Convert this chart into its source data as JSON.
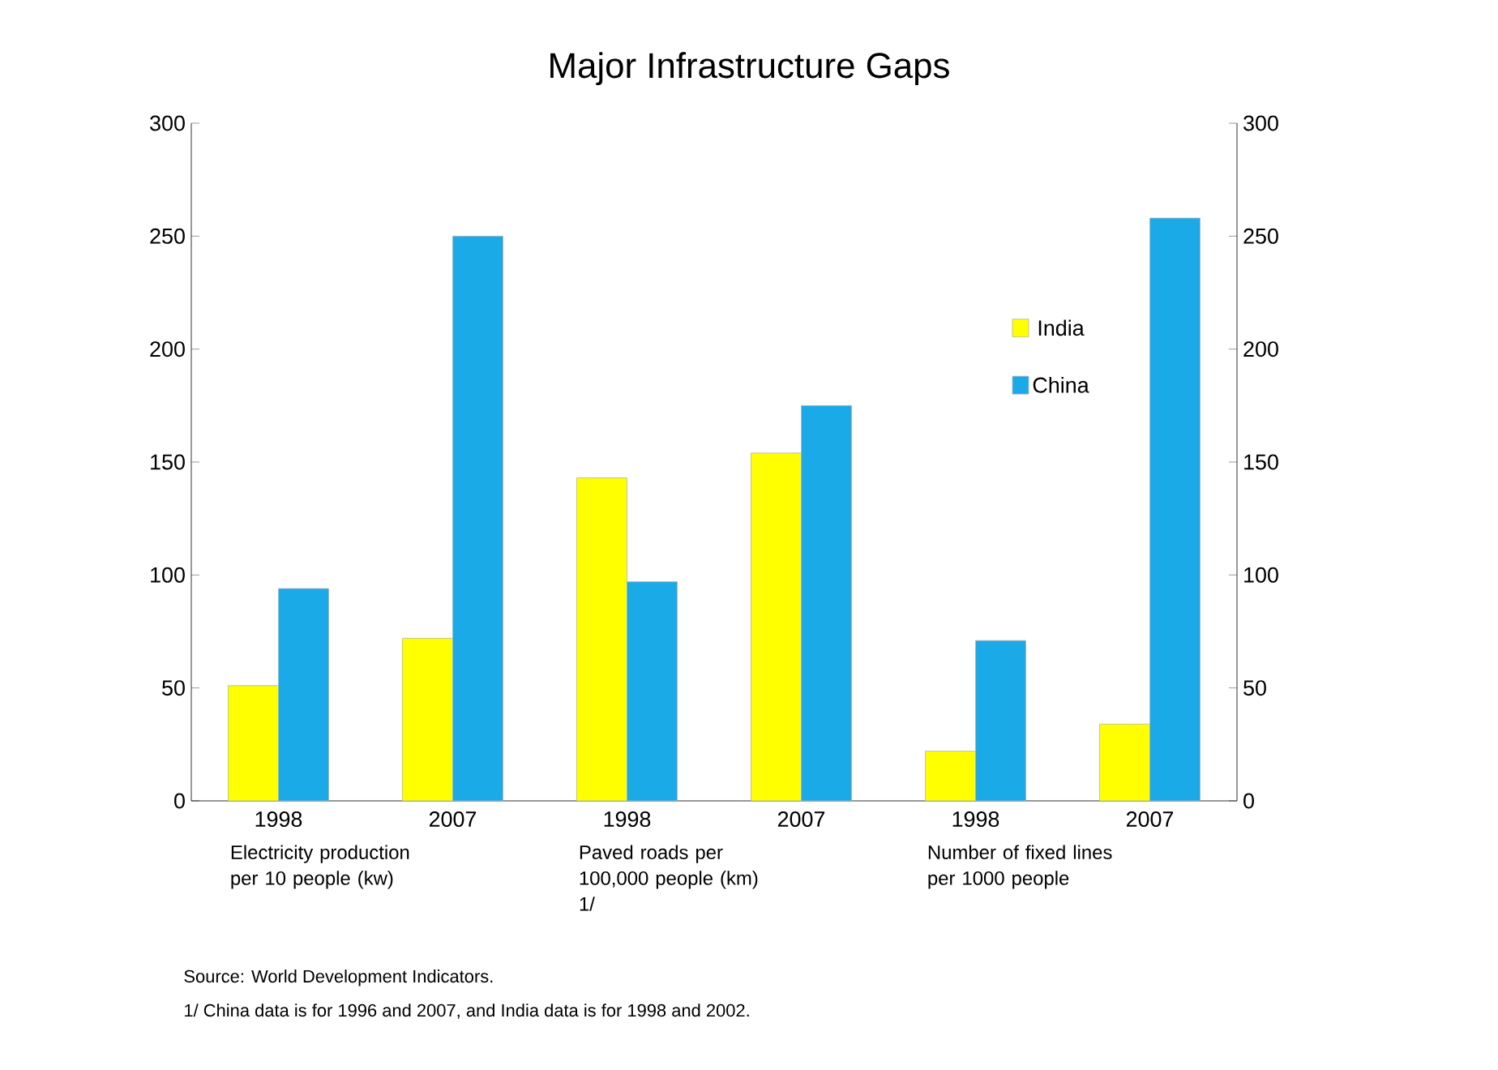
{
  "chart_data": {
    "type": "bar",
    "title": "Major Infrastructure Gaps",
    "categories": [
      "1998",
      "2007",
      "1998",
      "2007",
      "1998",
      "2007"
    ],
    "series": [
      {
        "name": "India",
        "color": "#ffff00",
        "values": [
          51,
          72,
          143,
          154,
          22,
          34
        ]
      },
      {
        "name": "China",
        "color": "#1aaae8",
        "values": [
          94,
          250,
          97,
          175,
          71,
          258
        ]
      }
    ],
    "ylim": [
      0,
      300
    ],
    "yticks": [
      0,
      50,
      100,
      150,
      200,
      250,
      300
    ],
    "y2lim": [
      0,
      300
    ],
    "y2ticks": [
      0,
      50,
      100,
      150,
      200,
      250,
      300
    ],
    "legend": "top right",
    "grid": false,
    "annotations": [
      "Electricity production per 10 people (kw)",
      "Paved roads per 100,000 people (km) 1/",
      "Number of fixed lines per 1000 people",
      "Source: World Development Indicators.",
      "1/ China data is for 1996 and 2007, and India data is for 1998 and 2002."
    ]
  }
}
